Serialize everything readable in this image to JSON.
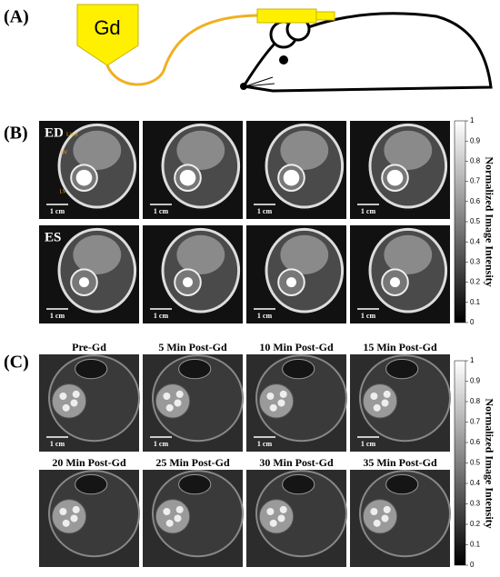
{
  "panel_a": {
    "label": "(A)",
    "syringe_label": "Gd"
  },
  "panel_b": {
    "label": "(B)",
    "rows": [
      "ED",
      "ES"
    ],
    "annotations": [
      "Liver",
      "RV",
      "LV"
    ],
    "scale_bar": "1 cm",
    "colorbar": {
      "title": "Normalized Image Intensity",
      "ticks": [
        1,
        0.9,
        0.8,
        0.7,
        0.6,
        0.5,
        0.4,
        0.3,
        0.2,
        0.1,
        0
      ]
    }
  },
  "panel_c": {
    "label": "(C)",
    "titles": [
      "Pre-Gd",
      "5 Min Post-Gd",
      "10 Min Post-Gd",
      "15 Min Post-Gd",
      "20 Min Post-Gd",
      "25 Min Post-Gd",
      "30 Min Post-Gd",
      "35 Min Post-Gd"
    ],
    "scale_bar": "1 cm",
    "colorbar": {
      "title": "Normalized Image Intensity",
      "ticks": [
        1,
        0.9,
        0.8,
        0.7,
        0.6,
        0.5,
        0.4,
        0.3,
        0.2,
        0.1,
        0
      ]
    }
  }
}
